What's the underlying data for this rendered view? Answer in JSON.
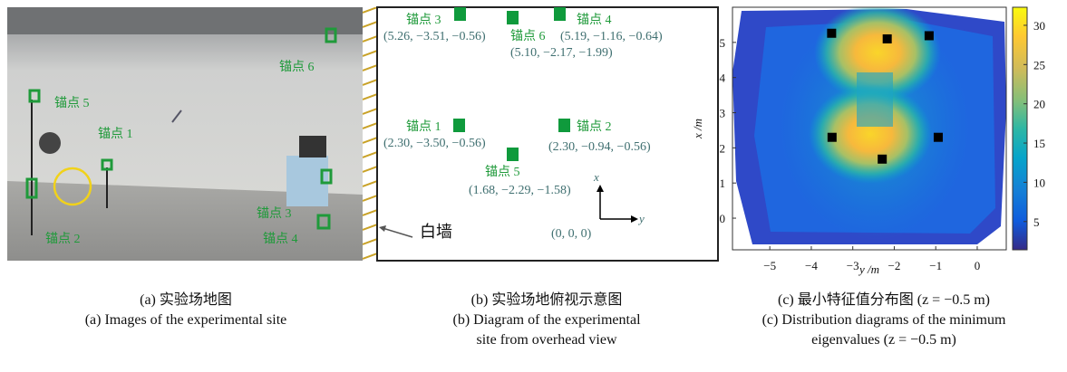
{
  "panel_a": {
    "labels": [
      "锚点 5",
      "锚点 1",
      "锚点 6",
      "锚点 2",
      "锚点 3",
      "锚点 4"
    ],
    "caption": [
      "(a) 实验场地图",
      "(a) Images of the experimental site"
    ]
  },
  "panel_b": {
    "anchors": [
      {
        "label": "锚点 3",
        "coords": "(5.26, −3.51, −0.56)"
      },
      {
        "label": "锚点 6",
        "coords": "(5.10, −2.17, −1.99)"
      },
      {
        "label": "锚点 4",
        "coords": "(5.19, −1.16, −0.64)"
      },
      {
        "label": "锚点 1",
        "coords": "(2.30, −3.50, −0.56)"
      },
      {
        "label": "锚点 2",
        "coords": "(2.30, −0.94, −0.56)"
      },
      {
        "label": "锚点 5",
        "coords": "(1.68, −2.29, −1.58)"
      }
    ],
    "axis_x": "x",
    "axis_y": "y",
    "origin": "(0, 0, 0)",
    "wall": "白墙",
    "caption": [
      "(b) 实验场地俯视示意图",
      "(b) Diagram of the experimental",
      "site from overhead view"
    ]
  },
  "chart_data": {
    "type": "scatter",
    "x": [
      -3.51,
      -2.17,
      -1.16,
      -3.5,
      -0.94,
      -2.29
    ],
    "values": [
      5.26,
      5.1,
      5.19,
      2.3,
      2.3,
      1.68
    ],
    "color": "#000000",
    "xlabel": "y /m",
    "ylabel": "x /m",
    "xlim": [
      -5.9,
      0.7
    ],
    "ylim": [
      -0.9,
      6.0
    ],
    "xticks": [
      {
        "value": -5,
        "label": "−5"
      },
      {
        "value": -4,
        "label": "−4"
      },
      {
        "value": -3,
        "label": "−3"
      },
      {
        "value": -2,
        "label": "−2"
      },
      {
        "value": -1,
        "label": "−1"
      },
      0
    ],
    "yticks": [
      0,
      1,
      2,
      3,
      4,
      5
    ],
    "colorbar": {
      "lim": [
        1.4,
        32.3
      ],
      "ticks": [
        5,
        10,
        15,
        20,
        25,
        30
      ]
    },
    "caption": [
      "(c) 最小特征值分布图 (z = −0.5 m)",
      "(c) Distribution diagrams of the minimum",
      "eigenvalues (z = −0.5 m)"
    ]
  }
}
